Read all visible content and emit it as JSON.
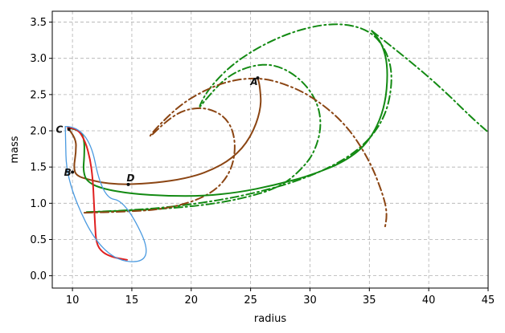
{
  "chart_data": {
    "type": "line",
    "xlabel": "radius",
    "ylabel": "mass",
    "xlim": [
      8.3,
      45
    ],
    "ylim": [
      -0.17,
      3.65
    ],
    "xticks": [
      10,
      15,
      20,
      25,
      30,
      35,
      40,
      45
    ],
    "yticks": [
      0.0,
      0.5,
      1.0,
      1.5,
      2.0,
      2.5,
      3.0,
      3.5
    ],
    "grid": true,
    "colors": {
      "green": "#138a13",
      "brown": "#8b4513",
      "red": "#e02020",
      "blue": "#4a9ae0",
      "grid": "#b0b0b0"
    },
    "annotations": [
      {
        "text": "A",
        "x": 25.3,
        "y": 2.63
      },
      {
        "text": "B",
        "x": 9.6,
        "y": 1.38
      },
      {
        "text": "C",
        "x": 8.9,
        "y": 1.97
      },
      {
        "text": "D",
        "x": 14.9,
        "y": 1.3
      }
    ],
    "marker_points": [
      {
        "x": 25.6,
        "y": 2.73
      },
      {
        "x": 10.0,
        "y": 1.43
      },
      {
        "x": 9.7,
        "y": 2.02
      },
      {
        "x": 14.7,
        "y": 1.26
      }
    ],
    "series": [
      {
        "color": "green",
        "dash": "dashdot",
        "width": 2,
        "points": [
          [
            11.2,
            0.88
          ],
          [
            15.0,
            0.9
          ],
          [
            20.0,
            0.98
          ],
          [
            25.0,
            1.12
          ],
          [
            30.0,
            1.36
          ],
          [
            34.0,
            1.7
          ],
          [
            36.3,
            2.15
          ],
          [
            37.0,
            2.7
          ],
          [
            36.5,
            3.1
          ],
          [
            35.0,
            3.4
          ],
          [
            32.0,
            3.5
          ],
          [
            28.0,
            3.35
          ],
          [
            24.0,
            3.0
          ],
          [
            21.5,
            2.6
          ],
          [
            20.5,
            2.28
          ],
          [
            21.3,
            2.45
          ],
          [
            23.0,
            2.75
          ],
          [
            25.0,
            2.9
          ],
          [
            27.0,
            2.92
          ],
          [
            29.0,
            2.75
          ],
          [
            30.5,
            2.45
          ],
          [
            31.0,
            2.1
          ],
          [
            30.5,
            1.75
          ],
          [
            29.5,
            1.5
          ],
          [
            27.5,
            1.22
          ],
          [
            24.0,
            1.05
          ],
          [
            20.0,
            0.95
          ],
          [
            15.0,
            0.9
          ],
          [
            11.5,
            0.88
          ]
        ]
      },
      {
        "color": "green",
        "dash": "dashdot",
        "width": 2,
        "points": [
          [
            35.2,
            3.38
          ],
          [
            38.0,
            3.02
          ],
          [
            41.0,
            2.6
          ],
          [
            43.5,
            2.2
          ],
          [
            45.0,
            1.98
          ]
        ]
      },
      {
        "color": "brown",
        "dash": "dashdot",
        "width": 2,
        "points": [
          [
            11.0,
            0.87
          ],
          [
            14.0,
            0.88
          ],
          [
            18.0,
            0.92
          ],
          [
            21.5,
            1.1
          ],
          [
            23.3,
            1.4
          ],
          [
            23.8,
            1.8
          ],
          [
            23.2,
            2.15
          ],
          [
            21.5,
            2.32
          ],
          [
            19.5,
            2.3
          ],
          [
            18.0,
            2.15
          ],
          [
            16.3,
            1.88
          ],
          [
            17.0,
            2.03
          ],
          [
            19.0,
            2.35
          ],
          [
            21.0,
            2.55
          ],
          [
            23.0,
            2.68
          ],
          [
            25.0,
            2.73
          ],
          [
            27.0,
            2.7
          ],
          [
            30.0,
            2.5
          ],
          [
            33.0,
            2.1
          ],
          [
            35.0,
            1.6
          ],
          [
            36.2,
            1.1
          ],
          [
            36.5,
            0.85
          ],
          [
            36.3,
            0.65
          ]
        ]
      },
      {
        "color": "brown",
        "dash": "solid",
        "width": 2,
        "points": [
          [
            9.7,
            2.02
          ],
          [
            10.3,
            1.9
          ],
          [
            10.3,
            1.7
          ],
          [
            10.1,
            1.5
          ],
          [
            10.3,
            1.38
          ],
          [
            11.5,
            1.32
          ],
          [
            13.0,
            1.27
          ],
          [
            14.7,
            1.26
          ],
          [
            17.0,
            1.28
          ],
          [
            19.5,
            1.34
          ],
          [
            21.5,
            1.44
          ],
          [
            23.5,
            1.62
          ],
          [
            25.0,
            1.9
          ],
          [
            25.9,
            2.3
          ],
          [
            25.8,
            2.6
          ],
          [
            25.6,
            2.73
          ]
        ]
      },
      {
        "color": "green",
        "dash": "solid",
        "width": 2,
        "points": [
          [
            9.6,
            2.04
          ],
          [
            10.5,
            2.02
          ],
          [
            11.0,
            1.9
          ],
          [
            11.0,
            1.65
          ],
          [
            10.9,
            1.45
          ],
          [
            11.2,
            1.3
          ],
          [
            12.5,
            1.2
          ],
          [
            15.0,
            1.13
          ],
          [
            18.0,
            1.1
          ],
          [
            21.0,
            1.1
          ],
          [
            24.0,
            1.15
          ],
          [
            27.0,
            1.25
          ],
          [
            30.0,
            1.38
          ],
          [
            33.0,
            1.58
          ],
          [
            35.0,
            1.85
          ],
          [
            36.3,
            2.3
          ],
          [
            36.6,
            2.85
          ],
          [
            36.1,
            3.2
          ],
          [
            35.2,
            3.38
          ]
        ]
      },
      {
        "color": "red",
        "dash": "solid",
        "width": 2,
        "points": [
          [
            9.6,
            2.04
          ],
          [
            10.4,
            2.04
          ],
          [
            11.1,
            1.85
          ],
          [
            11.5,
            1.6
          ],
          [
            11.7,
            1.35
          ],
          [
            11.8,
            1.05
          ],
          [
            11.9,
            0.7
          ],
          [
            12.0,
            0.45
          ],
          [
            12.5,
            0.32
          ],
          [
            13.5,
            0.25
          ],
          [
            14.6,
            0.22
          ]
        ]
      },
      {
        "color": "blue",
        "dash": "solid",
        "width": 1.3,
        "points": [
          [
            9.4,
            2.06
          ],
          [
            11.3,
            2.06
          ],
          [
            12.5,
            1.08
          ],
          [
            14.5,
            1.03
          ],
          [
            17.0,
            0.17
          ],
          [
            12.7,
            0.22
          ],
          [
            9.5,
            1.27
          ],
          [
            9.4,
            2.06
          ]
        ]
      }
    ]
  }
}
